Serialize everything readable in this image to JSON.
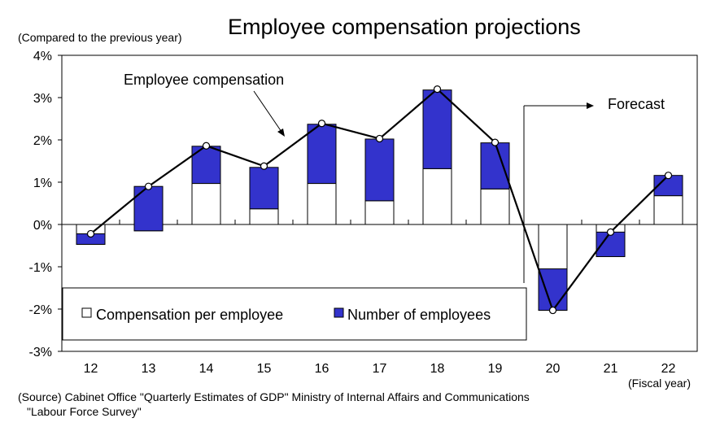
{
  "title": "Employee compensation projections",
  "y_unit_label": "(Compared to the previous year)",
  "x_unit_label": "(Fiscal year)",
  "source": {
    "line1": "(Source) Cabinet Office \"Quarterly Estimates of GDP\"  Ministry of Internal Affairs and Communications",
    "line2": "\"Labour Force Survey\""
  },
  "colors": {
    "number_of_employees": "#3333cc",
    "compensation_per_employee": "#ffffff",
    "line": "#000000",
    "axis": "#000000"
  },
  "chart_data": {
    "type": "bar",
    "stacked": true,
    "categories": [
      "12",
      "13",
      "14",
      "15",
      "16",
      "17",
      "18",
      "19",
      "20",
      "21",
      "22"
    ],
    "ylim": [
      -3,
      4
    ],
    "yticks": [
      {
        "value": 4,
        "label": "4%"
      },
      {
        "value": 3,
        "label": "3%"
      },
      {
        "value": 2,
        "label": "2%"
      },
      {
        "value": 1,
        "label": "1%"
      },
      {
        "value": 0,
        "label": "0%"
      },
      {
        "value": -1,
        "label": "-1%"
      },
      {
        "value": -2,
        "label": "-2%"
      },
      {
        "value": -3,
        "label": "-3%"
      }
    ],
    "grid": false,
    "legend_position": "bottom-left",
    "series": [
      {
        "name": "Compensation per employee",
        "kind": "bar",
        "color": "#ffffff",
        "values": [
          -0.47,
          -0.15,
          0.97,
          0.37,
          0.97,
          0.56,
          1.32,
          0.84,
          -2.03,
          -0.76,
          0.68
        ]
      },
      {
        "name": "Number of employees",
        "kind": "bar",
        "color": "#3333cc",
        "values": [
          0.25,
          1.05,
          0.88,
          0.98,
          1.4,
          1.46,
          1.86,
          1.09,
          0.98,
          0.58,
          0.48
        ]
      },
      {
        "name": "Employee compensation",
        "kind": "line",
        "color": "#000000",
        "values": [
          -0.22,
          0.9,
          1.86,
          1.38,
          2.39,
          2.03,
          3.2,
          1.94,
          -2.03,
          -0.18,
          1.16
        ]
      }
    ],
    "annotations": [
      {
        "text": "Employee compensation",
        "points_to_category": "15"
      },
      {
        "text": "Forecast",
        "starts_after_category": "19"
      }
    ]
  }
}
